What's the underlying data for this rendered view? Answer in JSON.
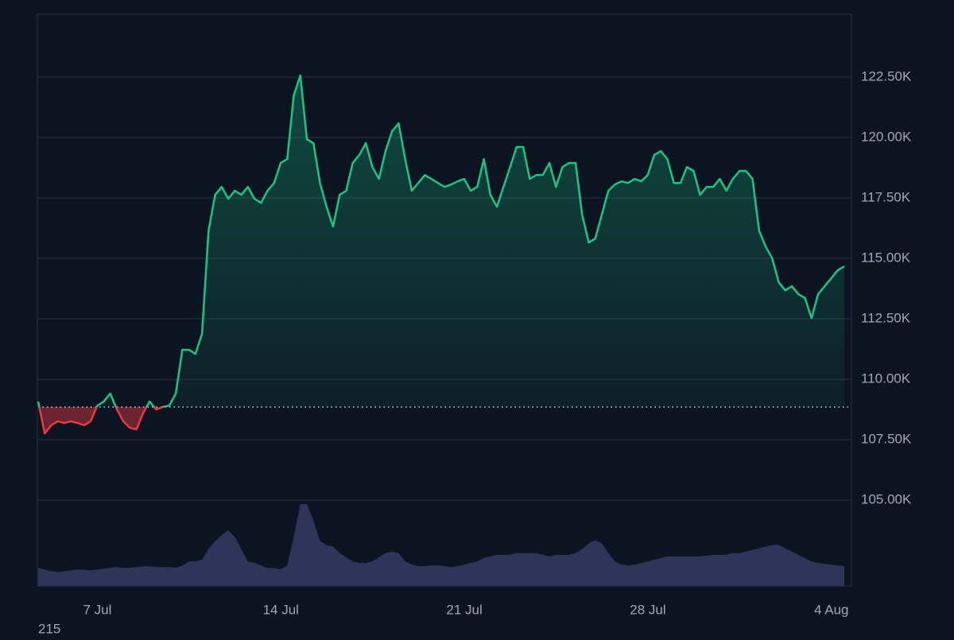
{
  "chart_data": {
    "type": "baseline-area",
    "categories": [
      null,
      null,
      null,
      null,
      null,
      null,
      null,
      null,
      null,
      null,
      "7 Jul",
      null,
      null,
      null,
      null,
      null,
      null,
      null,
      null,
      null,
      null,
      null,
      null,
      null,
      null,
      null,
      null,
      null,
      null,
      null,
      null,
      null,
      null,
      null,
      null,
      null,
      null,
      null,
      "14 Jul",
      null,
      null,
      null,
      null,
      null,
      null,
      null,
      null,
      null,
      null,
      null,
      null,
      null,
      null,
      null,
      null,
      null,
      null,
      null,
      null,
      null,
      null,
      null,
      null,
      null,
      null,
      null,
      "21 Jul",
      null,
      null,
      null,
      null,
      null,
      null,
      null,
      null,
      null,
      null,
      null,
      null,
      null,
      null,
      null,
      null,
      null,
      null,
      null,
      null,
      null,
      null,
      null,
      null,
      null,
      null,
      null,
      "28 Jul",
      null,
      null,
      null,
      null,
      null,
      null,
      null,
      null,
      null,
      null,
      null,
      null,
      null,
      null,
      null,
      null,
      null,
      null,
      null,
      null,
      null,
      null,
      null,
      null,
      null,
      null,
      null,
      "4 Aug",
      null
    ],
    "values": [
      109080,
      107760,
      108100,
      108260,
      108190,
      108260,
      108190,
      108100,
      108260,
      108900,
      109080,
      109410,
      108750,
      108260,
      107990,
      107930,
      108590,
      109080,
      108750,
      108850,
      108910,
      109410,
      111220,
      111220,
      111050,
      111880,
      116150,
      117630,
      117960,
      117470,
      117800,
      117630,
      117960,
      117470,
      117300,
      117800,
      118120,
      118950,
      119110,
      121740,
      122570,
      119930,
      119770,
      118120,
      117140,
      116320,
      117630,
      117800,
      118950,
      119280,
      119770,
      118780,
      118290,
      119440,
      120260,
      120590,
      119110,
      117800,
      118120,
      118450,
      118290,
      118120,
      117960,
      118060,
      118190,
      118290,
      117800,
      117960,
      119110,
      117630,
      117140,
      117960,
      118780,
      119610,
      119610,
      118290,
      118450,
      118450,
      118950,
      117960,
      118780,
      118950,
      118950,
      116810,
      115660,
      115820,
      116810,
      117800,
      118060,
      118190,
      118120,
      118290,
      118190,
      118450,
      119280,
      119440,
      119110,
      118120,
      118120,
      118780,
      118620,
      117630,
      117960,
      117960,
      118290,
      117800,
      118290,
      118620,
      118620,
      118290,
      116150,
      115490,
      115000,
      114010,
      113680,
      113850,
      113520,
      113360,
      112530,
      113520,
      113850,
      114180,
      114510,
      114670
    ],
    "volume": [
      22,
      20,
      18,
      17,
      18,
      19,
      20,
      20,
      19,
      20,
      21,
      22,
      23,
      22,
      22,
      23,
      24,
      24,
      23,
      23,
      23,
      22,
      25,
      30,
      30,
      32,
      45,
      55,
      62,
      68,
      60,
      45,
      30,
      28,
      25,
      22,
      22,
      20,
      25,
      60,
      100,
      100,
      80,
      55,
      50,
      48,
      40,
      35,
      30,
      28,
      28,
      30,
      35,
      40,
      42,
      40,
      30,
      26,
      24,
      24,
      25,
      25,
      24,
      23,
      24,
      26,
      28,
      30,
      34,
      36,
      38,
      38,
      38,
      40,
      40,
      40,
      40,
      38,
      36,
      38,
      38,
      38,
      40,
      45,
      52,
      56,
      52,
      40,
      30,
      26,
      25,
      26,
      28,
      30,
      32,
      34,
      36,
      36,
      36,
      36,
      36,
      36,
      37,
      38,
      38,
      38,
      40,
      40,
      42,
      44,
      46,
      48,
      50,
      50,
      46,
      42,
      38,
      34,
      30,
      28,
      27,
      26,
      25,
      24
    ],
    "baseline": 108850,
    "ylim": [
      101450,
      125100
    ],
    "yticks": [
      {
        "value": 105000,
        "label": "105.00K"
      },
      {
        "value": 107500,
        "label": "107.50K"
      },
      {
        "value": 110000,
        "label": "110.00K"
      },
      {
        "value": 112500,
        "label": "112.50K"
      },
      {
        "value": 115000,
        "label": "115.00K"
      },
      {
        "value": 117500,
        "label": "117.50K"
      },
      {
        "value": 120000,
        "label": "120.00K"
      },
      {
        "value": 122500,
        "label": "122.50K"
      }
    ],
    "grid": true,
    "up_color": "#16c784",
    "down_color": "#ea3943",
    "volume_color": "#2f3558",
    "footnote": "215"
  }
}
